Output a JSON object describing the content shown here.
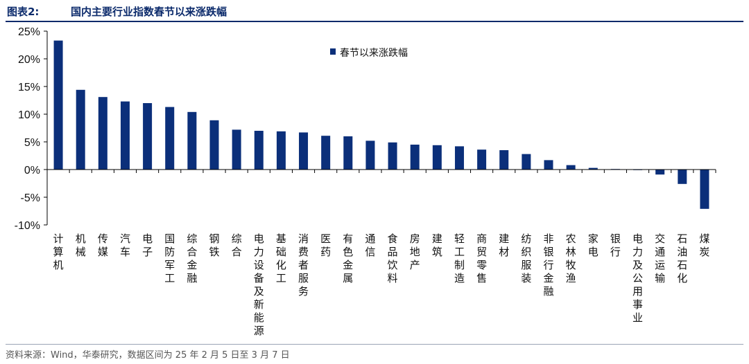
{
  "header": {
    "label": "图表2:",
    "title": "国内主要行业指数春节以来涨跌幅"
  },
  "source": "资料来源：Wind，华泰研究，数据区间为 25 年 2 月 5 日至 3 月 7 日",
  "colors": {
    "bar": "#0b2f7a",
    "title": "#0b2a6b",
    "axis": "#000000"
  },
  "chart_data": {
    "type": "bar",
    "title": "",
    "xlabel": "",
    "ylabel": "",
    "ylim": [
      -10,
      25
    ],
    "yticks": [
      25,
      20,
      15,
      10,
      5,
      0,
      -5,
      -10
    ],
    "ytick_labels": [
      "25%",
      "20%",
      "15%",
      "10%",
      "5%",
      "0%",
      "-5%",
      "-10%"
    ],
    "grid": false,
    "legend_position": "top-center",
    "categories": [
      "计算机",
      "机械",
      "传媒",
      "汽车",
      "电子",
      "国防军工",
      "综合金融",
      "钢铁",
      "综合",
      "电力设备及新能源",
      "基础化工",
      "消费者服务",
      "医药",
      "有色金属",
      "通信",
      "食品饮料",
      "房地产",
      "建筑",
      "轻工制造",
      "商贸零售",
      "建材",
      "纺织服装",
      "非银行金融",
      "农林牧渔",
      "家电",
      "银行",
      "电力及公用事业",
      "交通运输",
      "石油石化",
      "煤炭"
    ],
    "series": [
      {
        "name": "春节以来涨跌幅",
        "values": [
          23.3,
          14.4,
          13.1,
          12.3,
          12.0,
          11.3,
          10.4,
          8.9,
          7.2,
          7.0,
          6.9,
          6.7,
          6.1,
          6.0,
          5.2,
          4.9,
          4.5,
          4.4,
          4.2,
          3.6,
          3.5,
          2.8,
          1.7,
          0.8,
          0.3,
          0.1,
          -0.1,
          -0.9,
          -2.6,
          -7.1
        ]
      }
    ]
  }
}
